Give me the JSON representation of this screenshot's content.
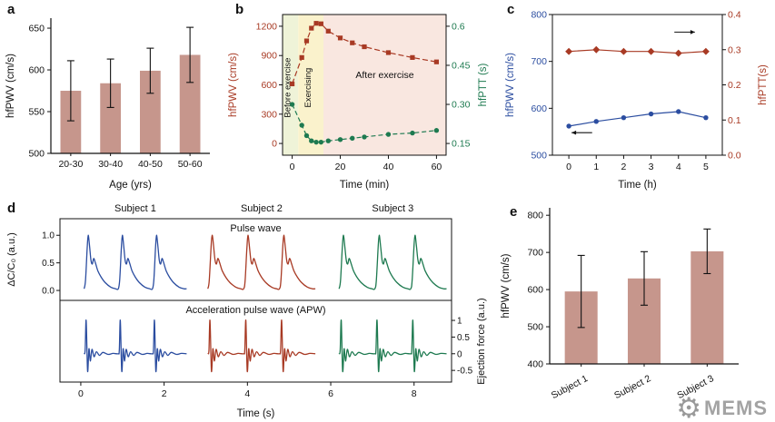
{
  "figure": {
    "bg": "#ffffff",
    "panel_labels": {
      "a": "a",
      "b": "b",
      "c": "c",
      "d": "d",
      "e": "e"
    }
  },
  "colors": {
    "bar": "#c6968c",
    "red": "#a83a24",
    "green": "#1e7a50",
    "blue": "#2b4da0",
    "axis": "#111111"
  },
  "watermark": {
    "text": "MEMS",
    "icon": "gear-icon",
    "color": "#9a9a9a"
  },
  "chart_data": [
    {
      "id": "a",
      "type": "bar",
      "categories": [
        "20-30",
        "30-40",
        "40-50",
        "50-60"
      ],
      "values": [
        575,
        584,
        599,
        618
      ],
      "errors": [
        36,
        29,
        27,
        33
      ],
      "xlabel": "Age (yrs)",
      "ylabel": "hfPWV (cm/s)",
      "ylim": [
        500,
        662
      ],
      "yticks": [
        500,
        550,
        600,
        650
      ],
      "bar_color": "#c6968c"
    },
    {
      "id": "b",
      "type": "dual-line",
      "xlabel": "Time (min)",
      "xlim": [
        -4,
        64
      ],
      "xticks": [
        0,
        20,
        40,
        60
      ],
      "left": {
        "label": "hfPWV (cm/s)",
        "color": "#a83a24",
        "lim": [
          -120,
          1320
        ],
        "ticks": [
          0,
          300,
          600,
          900,
          1200
        ],
        "tick_labels": [
          "0",
          "300",
          "600",
          "900",
          "1200"
        ]
      },
      "right": {
        "label": "hfPTT (s)",
        "color": "#1e7a50",
        "lim": [
          0.105,
          0.645
        ],
        "ticks": [
          0.15,
          0.3,
          0.45,
          0.6
        ],
        "tick_labels": [
          "0.15",
          "0.30",
          "0.45",
          "0.6"
        ]
      },
      "regions": [
        {
          "label": "Before exercise",
          "x0": -4,
          "x1": 2.5,
          "color": "#eff3d8",
          "vertical": true
        },
        {
          "label": "Exercising",
          "x0": 2.5,
          "x1": 13,
          "color": "#faf2cc",
          "vertical": true
        },
        {
          "label": "After exercise",
          "x0": 13,
          "x1": 64,
          "color": "#f9e7e0",
          "vertical": false
        }
      ],
      "series": [
        {
          "name": "hfPWV",
          "axis": "left",
          "marker": "square",
          "dash": "6 3",
          "x": [
            0,
            4,
            6,
            8,
            10,
            12,
            15,
            20,
            25,
            30,
            40,
            50,
            60
          ],
          "y": [
            610,
            880,
            1050,
            1180,
            1230,
            1225,
            1150,
            1080,
            1030,
            990,
            930,
            880,
            835
          ]
        },
        {
          "name": "hfPTT",
          "axis": "right",
          "marker": "circle",
          "dash": "5 3",
          "x": [
            0,
            4,
            6,
            8,
            10,
            12,
            15,
            20,
            25,
            30,
            40,
            50,
            60
          ],
          "y": [
            0.3,
            0.22,
            0.18,
            0.16,
            0.155,
            0.155,
            0.16,
            0.165,
            0.17,
            0.175,
            0.185,
            0.19,
            0.2
          ]
        }
      ]
    },
    {
      "id": "c",
      "type": "dual-line",
      "xlabel": "Time (h)",
      "xlim": [
        -0.6,
        5.6
      ],
      "xticks": [
        0,
        1,
        2,
        3,
        4,
        5
      ],
      "left": {
        "label": "hfPWV (cm/s)",
        "color": "#2b4da0",
        "lim": [
          500,
          800
        ],
        "ticks": [
          500,
          600,
          700,
          800
        ],
        "tick_labels": [
          "500",
          "600",
          "700",
          "800"
        ]
      },
      "right": {
        "label": "hfPTT(s)",
        "color": "#a83a24",
        "lim": [
          0,
          0.4
        ],
        "ticks": [
          0,
          0.1,
          0.2,
          0.3,
          0.4
        ],
        "tick_labels": [
          "0.0",
          "0.1",
          "0.2",
          "0.3",
          "0.4"
        ]
      },
      "series": [
        {
          "name": "hfPWV",
          "axis": "left",
          "marker": "circle",
          "color": "#2b4da0",
          "x": [
            0,
            1,
            2,
            3,
            4,
            5
          ],
          "y": [
            562,
            572,
            580,
            588,
            593,
            580
          ]
        },
        {
          "name": "hfPTT",
          "axis": "right",
          "marker": "diamond",
          "color": "#a83a24",
          "x": [
            0,
            1,
            2,
            3,
            4,
            5
          ],
          "y": [
            0.295,
            0.3,
            0.295,
            0.295,
            0.29,
            0.295
          ]
        }
      ],
      "arrows": [
        {
          "axis": "left",
          "x_from": 0.85,
          "x_to": 0.1,
          "y": 548
        },
        {
          "axis": "right",
          "x_from": 3.85,
          "x_to": 4.6,
          "y": 0.35
        }
      ]
    },
    {
      "id": "d",
      "type": "waveform",
      "xlabel": "Time (s)",
      "xlim": [
        -0.5,
        8.9
      ],
      "xticks": [
        0,
        2,
        4,
        6,
        8
      ],
      "top": {
        "ylabel": "ΔC/C₀ (a.u.)",
        "title": "Pulse wave",
        "ylim": [
          -0.18,
          1.3
        ],
        "yticks": [
          0,
          0.5,
          1
        ],
        "tick_labels": [
          "0.0",
          "0.5",
          "1.0"
        ]
      },
      "bottom": {
        "ylabel": "Ejection force (a.u.)",
        "title": "Acceleration pulse wave (APW)",
        "ylim": [
          -0.85,
          1.6
        ],
        "yticks": [
          1,
          0.5,
          0,
          -0.5
        ],
        "tick_labels": [
          "1",
          "0.5",
          "0",
          "-0.5"
        ]
      },
      "subjects": [
        {
          "name": "Subject 1",
          "color": "#2b4da0",
          "start": 0.08,
          "period": 0.82,
          "cycles": 3
        },
        {
          "name": "Subject 2",
          "color": "#a83a24",
          "start": 3.05,
          "period": 0.86,
          "cycles": 3
        },
        {
          "name": "Subject 3",
          "color": "#1e7a50",
          "start": 6.2,
          "period": 0.86,
          "cycles": 3
        }
      ],
      "pulse_template": [
        [
          0,
          0.03
        ],
        [
          0.04,
          0.18
        ],
        [
          0.09,
          0.78
        ],
        [
          0.12,
          1
        ],
        [
          0.16,
          0.8
        ],
        [
          0.2,
          0.55
        ],
        [
          0.24,
          0.48
        ],
        [
          0.28,
          0.58
        ],
        [
          0.33,
          0.5
        ],
        [
          0.4,
          0.36
        ],
        [
          0.5,
          0.24
        ],
        [
          0.62,
          0.14
        ],
        [
          0.78,
          0.06
        ],
        [
          0.92,
          0.03
        ],
        [
          1,
          0.03
        ]
      ],
      "apw_template": [
        [
          0,
          0
        ],
        [
          0.03,
          0.1
        ],
        [
          0.06,
          1
        ],
        [
          0.1,
          -0.52
        ],
        [
          0.14,
          0.15
        ],
        [
          0.18,
          -0.22
        ],
        [
          0.23,
          0.13
        ],
        [
          0.29,
          -0.09
        ],
        [
          0.36,
          0.06
        ],
        [
          0.45,
          -0.05
        ],
        [
          0.55,
          0.04
        ],
        [
          0.7,
          -0.02
        ],
        [
          0.85,
          0.01
        ],
        [
          1,
          0
        ]
      ]
    },
    {
      "id": "e",
      "type": "bar",
      "categories": [
        "Subject 1",
        "Subject 2",
        "Subject 3"
      ],
      "values": [
        595,
        630,
        703
      ],
      "errors": [
        97,
        72,
        60
      ],
      "xlabel": "",
      "ylabel": "hfPWV (cm/s)",
      "ylim": [
        400,
        820
      ],
      "yticks": [
        400,
        500,
        600,
        700,
        800
      ],
      "bar_color": "#c6968c",
      "label_rotate": -28
    }
  ]
}
